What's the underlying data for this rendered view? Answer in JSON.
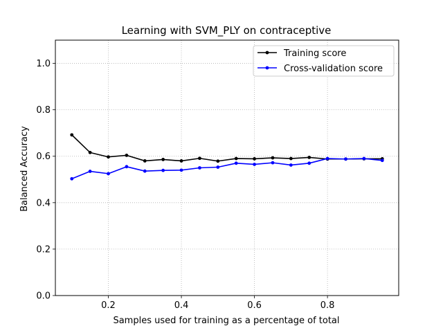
{
  "chart_data": {
    "type": "line",
    "title": "Learning with SVM_PLY on contraceptive",
    "xlabel": "Samples used for training as a percentage of total",
    "ylabel": "Balanced Accuracy",
    "xlim": [
      0.055,
      0.995
    ],
    "ylim": [
      0.0,
      1.1
    ],
    "x_ticks": [
      0.2,
      0.4,
      0.6,
      0.8
    ],
    "x_tick_labels": [
      "0.2",
      "0.4",
      "0.6",
      "0.8"
    ],
    "y_ticks": [
      0.0,
      0.2,
      0.4,
      0.6,
      0.8,
      1.0
    ],
    "y_tick_labels": [
      "0.0",
      "0.2",
      "0.4",
      "0.6",
      "0.8",
      "1.0"
    ],
    "grid": true,
    "legend_position": "top-right",
    "x": [
      0.1,
      0.15,
      0.2,
      0.25,
      0.3,
      0.35,
      0.4,
      0.45,
      0.5,
      0.55,
      0.6,
      0.65,
      0.7,
      0.75,
      0.8,
      0.85,
      0.9,
      0.95
    ],
    "series": [
      {
        "name": "Training score",
        "color": "#000000",
        "values": [
          0.692,
          0.616,
          0.597,
          0.604,
          0.58,
          0.586,
          0.58,
          0.591,
          0.579,
          0.59,
          0.589,
          0.593,
          0.59,
          0.595,
          0.588,
          0.588,
          0.589,
          0.589
        ]
      },
      {
        "name": "Cross-validation score",
        "color": "#0000ff",
        "values": [
          0.503,
          0.535,
          0.525,
          0.555,
          0.536,
          0.539,
          0.54,
          0.55,
          0.553,
          0.57,
          0.565,
          0.572,
          0.562,
          0.57,
          0.59,
          0.588,
          0.59,
          0.582
        ]
      }
    ]
  }
}
